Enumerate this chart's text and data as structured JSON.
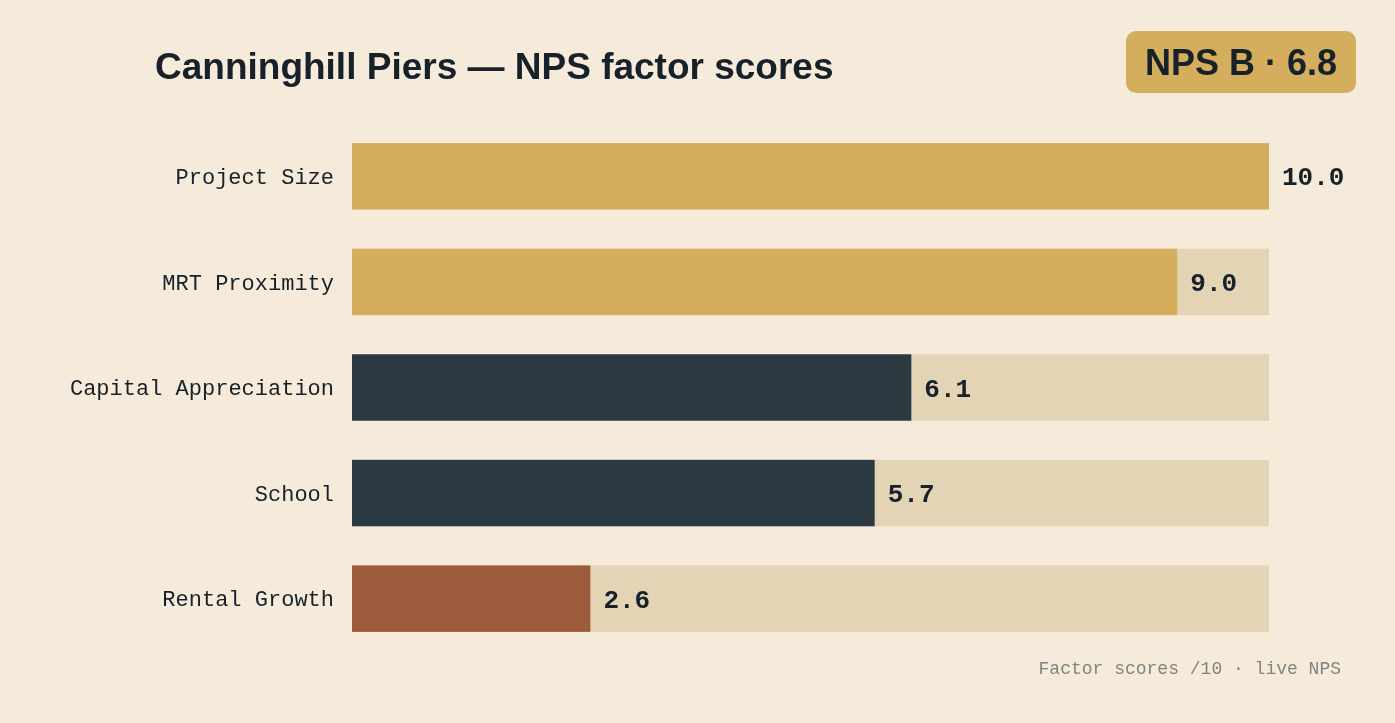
{
  "chart_data": {
    "type": "bar",
    "orientation": "horizontal",
    "stacked": true,
    "title": "Canninghill Piers — NPS factor scores",
    "categories": [
      "Project Size",
      "MRT Proximity",
      "Capital Appreciation",
      "School",
      "Rental Growth"
    ],
    "xlim": [
      0,
      10
    ],
    "tick_labels": "y",
    "series": [
      {
        "colors": [
          "#d4ae5c",
          "#d4ae5c",
          "#2b3940",
          "#2b3940",
          "#9c5b3b"
        ],
        "values": [
          10.0,
          9.0,
          6.1,
          5.7,
          2.6
        ],
        "value_labels": [
          "10.0",
          "9.0",
          "6.1",
          "5.7",
          "2.6"
        ]
      },
      {
        "color": "#e2d4b5",
        "values": [
          0,
          1.0,
          3.9,
          4.3,
          7.4
        ]
      }
    ],
    "annotations": [
      "NPS B · 6.8",
      "Factor scores /10 · live NPS"
    ]
  }
}
